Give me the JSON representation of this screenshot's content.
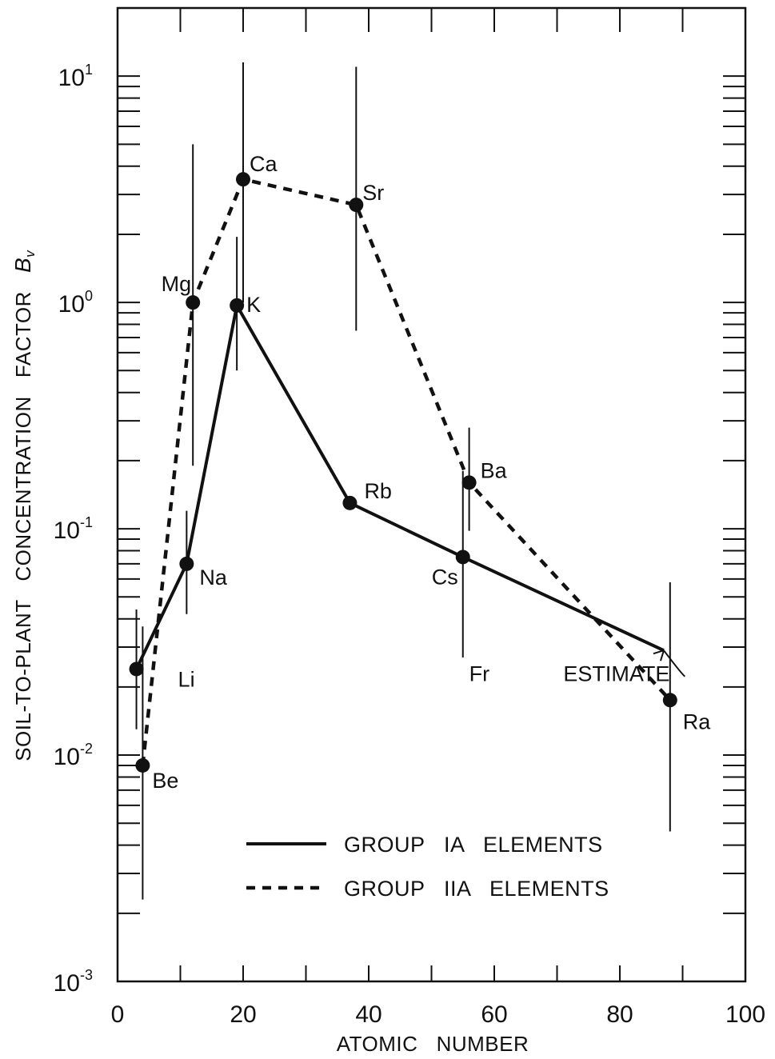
{
  "chart_data": {
    "type": "scatter",
    "title": "",
    "xlabel": "ATOMIC   NUMBER",
    "ylabel": "SOIL-TO-PLANT   CONCENTRATION   FACTOR",
    "ylabel_symbol": "B",
    "ylabel_subscript": "v",
    "xlim": [
      0,
      100
    ],
    "ylim": [
      0.001,
      20
    ],
    "yscale": "log",
    "xticks": [
      0,
      20,
      40,
      60,
      80,
      100
    ],
    "xtick_labels": [
      "0",
      "20",
      "40",
      "60",
      "80",
      "100"
    ],
    "ytick_decades": [
      {
        "value": 0.001,
        "base": "10",
        "exp": "-3"
      },
      {
        "value": 0.01,
        "base": "10",
        "exp": "-2"
      },
      {
        "value": 0.1,
        "base": "10",
        "exp": "-1"
      },
      {
        "value": 1,
        "base": "10",
        "exp": "0"
      },
      {
        "value": 10,
        "base": "10",
        "exp": "1"
      }
    ],
    "grid": false,
    "points": [
      {
        "label": "Li",
        "x": 3,
        "y": 0.024,
        "err_low": 0.013,
        "err_high": 0.044
      },
      {
        "label": "Be",
        "x": 4,
        "y": 0.009,
        "err_low": 0.0023,
        "err_high": 0.037
      },
      {
        "label": "Na",
        "x": 11,
        "y": 0.07,
        "err_low": 0.042,
        "err_high": 0.12
      },
      {
        "label": "Mg",
        "x": 12,
        "y": 1.0,
        "err_low": 0.19,
        "err_high": 5.0
      },
      {
        "label": "K",
        "x": 19,
        "y": 0.97,
        "err_low": 0.5,
        "err_high": 1.95
      },
      {
        "label": "Ca",
        "x": 20,
        "y": 3.5,
        "err_low": 1.0,
        "err_high": 11.5
      },
      {
        "label": "Rb",
        "x": 37,
        "y": 0.13
      },
      {
        "label": "Sr",
        "x": 38,
        "y": 2.7,
        "err_low": 0.75,
        "err_high": 11.0
      },
      {
        "label": "Cs",
        "x": 55,
        "y": 0.075,
        "err_low": 0.027,
        "err_high": 0.18
      },
      {
        "label": "Ba",
        "x": 56,
        "y": 0.16,
        "err_low": 0.098,
        "err_high": 0.28
      },
      {
        "label": "Ra",
        "x": 88,
        "y": 0.0175,
        "err_low": 0.0046,
        "err_high": 0.058
      }
    ],
    "series": [
      {
        "name": "GROUP   IA   ELEMENTS",
        "style": "solid",
        "x": [
          3,
          11,
          19,
          37,
          55,
          87
        ],
        "y": [
          0.024,
          0.07,
          0.97,
          0.13,
          0.075,
          0.029
        ]
      },
      {
        "name": "GROUP   IIA   ELEMENTS",
        "style": "dashed",
        "x": [
          4,
          12,
          20,
          38,
          56,
          88
        ],
        "y": [
          0.009,
          1.0,
          3.5,
          2.7,
          0.16,
          0.0175
        ]
      }
    ],
    "annotations": [
      {
        "text": "Fr",
        "x": 56,
        "y": 0.023
      },
      {
        "text": "ESTIMATE",
        "x": 71,
        "y": 0.023,
        "arrow_to": {
          "x": 87,
          "y": 0.029
        }
      }
    ],
    "legend_placement": "bottom-center",
    "colors": {
      "ink": "#111111",
      "background": "#ffffff"
    }
  }
}
